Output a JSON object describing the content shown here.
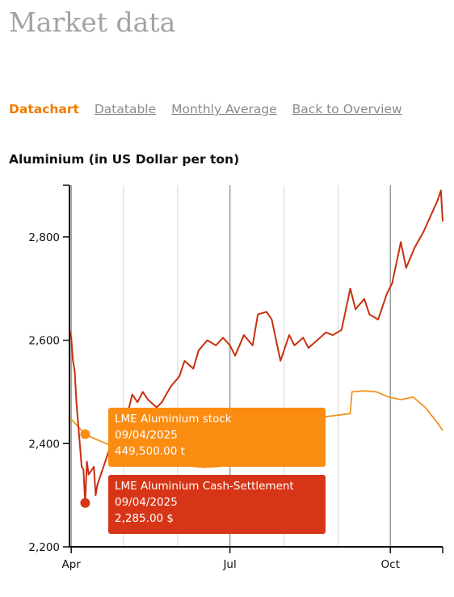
{
  "page": {
    "title": "Market data"
  },
  "tabs": [
    {
      "label": "Datachart",
      "active": true
    },
    {
      "label": "Datatable",
      "active": false
    },
    {
      "label": "Monthly Average",
      "active": false
    },
    {
      "label": "Back to Overview",
      "active": false
    }
  ],
  "chart_data": {
    "type": "line",
    "title": "Aluminium (in US Dollar per ton)",
    "xlabel": "",
    "ylabel": "",
    "ylim": [
      2200,
      2900
    ],
    "yticks": [
      2200,
      2400,
      2600,
      2800
    ],
    "ytick_labels": [
      "2,200",
      "2,400",
      "2,600",
      "2,800"
    ],
    "xlim": [
      "2025-03-31",
      "2025-10-31"
    ],
    "xticks": [
      {
        "date": "2025-04-01",
        "label": "Apr"
      },
      {
        "date": "2025-07-01",
        "label": "Jul"
      },
      {
        "date": "2025-10-01",
        "label": "Oct"
      }
    ],
    "gridlines": [
      "2025-04-01",
      "2025-05-01",
      "2025-06-01",
      "2025-07-01",
      "2025-08-01",
      "2025-09-01",
      "2025-10-01"
    ],
    "colors": {
      "cash": "#c8300f",
      "stock": "#f0951e",
      "tooltip_cash": "#d63617",
      "tooltip_stock": "#fb8c12"
    },
    "series": [
      {
        "key": "cash",
        "name": "LME Aluminium Cash-Settlement",
        "x": [
          "2025-03-31",
          "2025-04-01",
          "2025-04-02",
          "2025-04-03",
          "2025-04-04",
          "2025-04-07",
          "2025-04-08",
          "2025-04-09",
          "2025-04-10",
          "2025-04-11",
          "2025-04-14",
          "2025-04-15",
          "2025-04-16",
          "2025-04-17",
          "2025-04-22",
          "2025-04-24",
          "2025-04-28",
          "2025-05-02",
          "2025-05-06",
          "2025-05-09",
          "2025-05-12",
          "2025-05-15",
          "2025-05-20",
          "2025-05-23",
          "2025-05-28",
          "2025-06-02",
          "2025-06-05",
          "2025-06-10",
          "2025-06-13",
          "2025-06-18",
          "2025-06-23",
          "2025-06-27",
          "2025-07-01",
          "2025-07-04",
          "2025-07-09",
          "2025-07-14",
          "2025-07-17",
          "2025-07-22",
          "2025-07-25",
          "2025-07-30",
          "2025-08-04",
          "2025-08-07",
          "2025-08-12",
          "2025-08-15",
          "2025-08-20",
          "2025-08-25",
          "2025-08-29",
          "2025-09-03",
          "2025-09-08",
          "2025-09-11",
          "2025-09-16",
          "2025-09-19",
          "2025-09-24",
          "2025-09-29",
          "2025-10-02",
          "2025-10-07",
          "2025-10-10",
          "2025-10-15",
          "2025-10-20",
          "2025-10-24",
          "2025-10-28",
          "2025-10-30",
          "2025-10-31"
        ],
        "values": [
          2620,
          2605,
          2560,
          2540,
          2480,
          2355,
          2350,
          2285,
          2365,
          2340,
          2355,
          2300,
          2320,
          2330,
          2380,
          2400,
          2420,
          2440,
          2495,
          2480,
          2500,
          2485,
          2470,
          2480,
          2510,
          2530,
          2560,
          2545,
          2580,
          2600,
          2590,
          2605,
          2590,
          2570,
          2610,
          2590,
          2650,
          2655,
          2640,
          2560,
          2610,
          2590,
          2605,
          2585,
          2600,
          2615,
          2610,
          2620,
          2700,
          2660,
          2680,
          2650,
          2640,
          2690,
          2710,
          2790,
          2740,
          2780,
          2810,
          2840,
          2870,
          2890,
          2830
        ]
      },
      {
        "key": "stock",
        "name": "LME Aluminium stock",
        "x": [
          "2025-03-31",
          "2025-04-03",
          "2025-04-07",
          "2025-04-09",
          "2025-04-14",
          "2025-04-21",
          "2025-04-28",
          "2025-05-05",
          "2025-05-12",
          "2025-05-19",
          "2025-05-26",
          "2025-06-02",
          "2025-06-09",
          "2025-06-16",
          "2025-06-23",
          "2025-06-30",
          "2025-07-07",
          "2025-07-14",
          "2025-07-21",
          "2025-07-28",
          "2025-08-04",
          "2025-08-11",
          "2025-08-18",
          "2025-08-25",
          "2025-09-01",
          "2025-09-08",
          "2025-09-09",
          "2025-09-16",
          "2025-09-23",
          "2025-09-30",
          "2025-10-07",
          "2025-10-14",
          "2025-10-21",
          "2025-10-28",
          "2025-10-31"
        ],
        "values": [
          2450,
          2440,
          2425,
          2418,
          2410,
          2400,
          2390,
          2378,
          2372,
          2366,
          2360,
          2358,
          2356,
          2354,
          2355,
          2358,
          2362,
          2368,
          2378,
          2390,
          2410,
          2430,
          2445,
          2452,
          2455,
          2458,
          2500,
          2502,
          2500,
          2490,
          2485,
          2490,
          2470,
          2440,
          2425
        ]
      }
    ]
  },
  "tooltips": {
    "stock": {
      "series": "LME Aluminium stock",
      "date": "09/04/2025",
      "value": "449,500.00 t"
    },
    "cash": {
      "series": "LME Aluminium Cash-Settlement",
      "date": "09/04/2025",
      "value": "2,285.00 $"
    }
  }
}
